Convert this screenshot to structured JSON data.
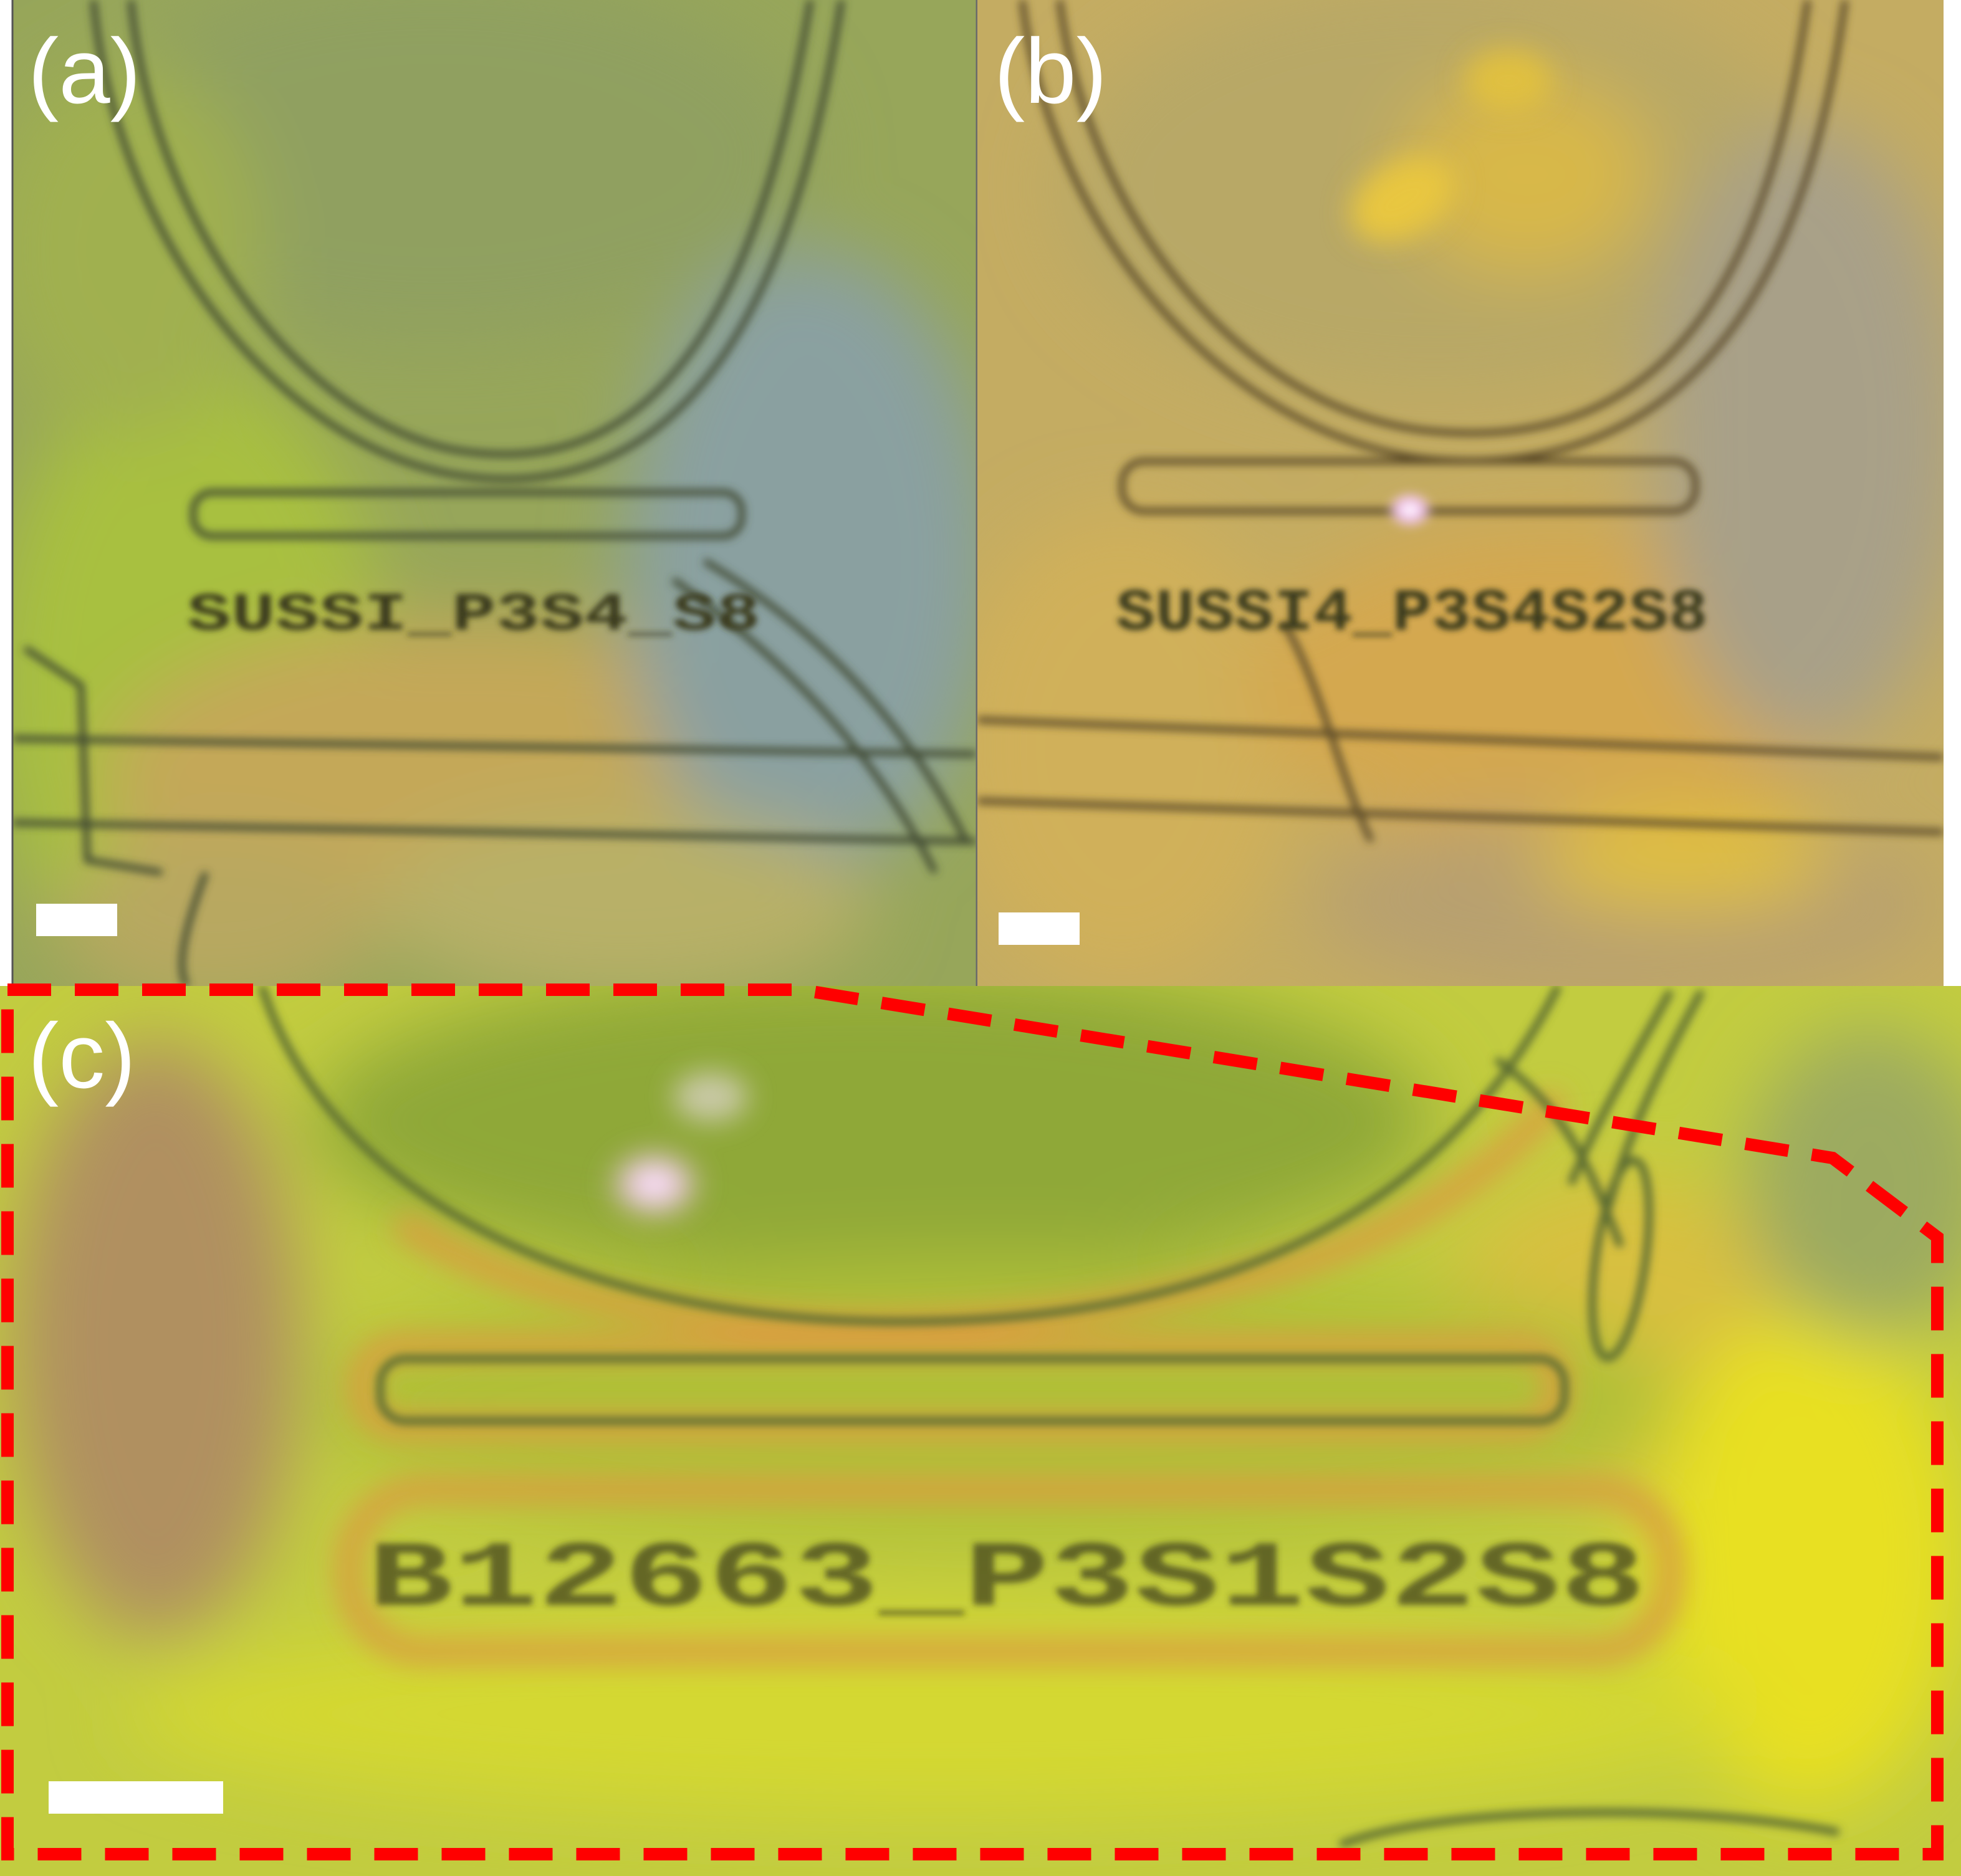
{
  "panels": [
    {
      "id": "a",
      "label": "(a)",
      "etched_text": "SUSSI_P3S4_S8"
    },
    {
      "id": "b",
      "label": "(b)",
      "etched_text": "SUSSI4_P3S4S2S8"
    },
    {
      "id": "c",
      "label": "(c)",
      "etched_text": "B12663_P3S1S2S8"
    }
  ],
  "colors": {
    "highlight_outline": "#ff0000",
    "scale_bar": "#ffffff",
    "panel_a_base": "#9aa85a",
    "panel_b_base": "#c8b060",
    "panel_c_base": "#c8d040",
    "laser_spot": "#f4c8f0"
  }
}
